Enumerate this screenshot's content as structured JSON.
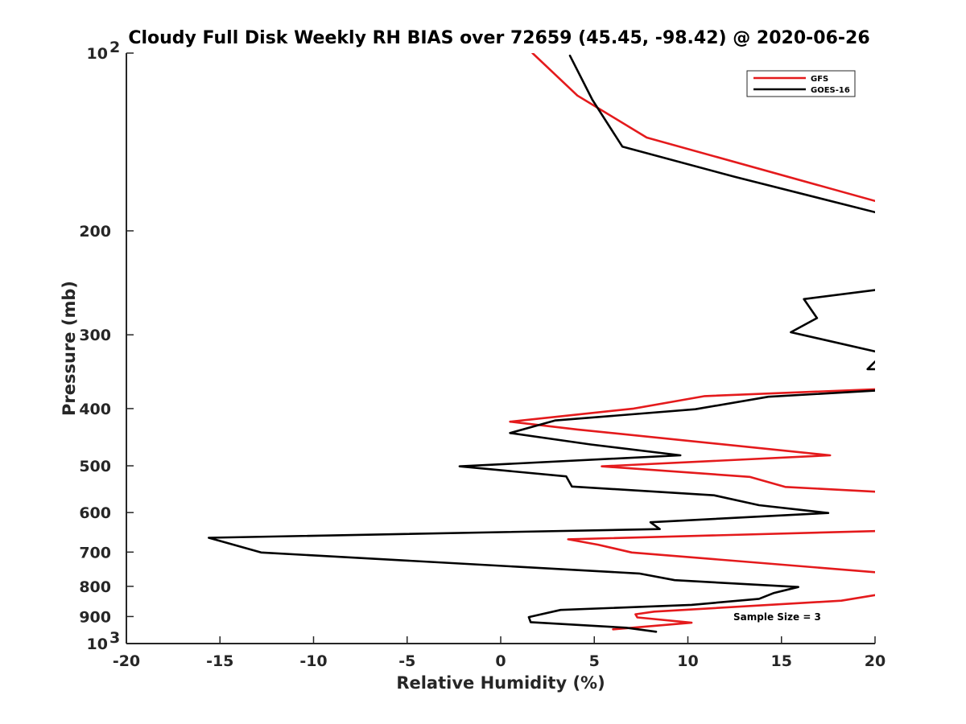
{
  "chart_data": {
    "type": "line",
    "title": "Cloudy Full Disk Weekly RH BIAS over 72659 (45.45, -98.42) @ 2020-06-26",
    "xlabel": "Relative Humidity (%)",
    "ylabel": "Pressure (mb)",
    "xlim": [
      -20,
      20
    ],
    "ylim": [
      100,
      1000
    ],
    "y_scale": "log",
    "y_reversed": true,
    "grid": false,
    "legend_placement": "top-right",
    "x_ticks": [
      -20,
      -15,
      -10,
      -5,
      0,
      5,
      10,
      15,
      20
    ],
    "y_ticks": [
      {
        "value": 100,
        "label": "10",
        "sup": "2"
      },
      {
        "value": 200,
        "label": "200",
        "sup": ""
      },
      {
        "value": 300,
        "label": "300",
        "sup": ""
      },
      {
        "value": 400,
        "label": "400",
        "sup": ""
      },
      {
        "value": 500,
        "label": "500",
        "sup": ""
      },
      {
        "value": 600,
        "label": "600",
        "sup": ""
      },
      {
        "value": 700,
        "label": "700",
        "sup": ""
      },
      {
        "value": 800,
        "label": "800",
        "sup": ""
      },
      {
        "value": 900,
        "label": "900",
        "sup": ""
      },
      {
        "value": 1000,
        "label": "10",
        "sup": "3"
      }
    ],
    "series": [
      {
        "name": "GFS",
        "color": "#e41a1c",
        "points": [
          [
            1.7,
            100
          ],
          [
            4.1,
            118
          ],
          [
            7.8,
            139
          ],
          [
            20,
            178
          ],
          null,
          [
            20,
            371
          ],
          [
            10.9,
            381
          ],
          [
            7.1,
            400
          ],
          [
            0.5,
            421
          ],
          [
            4.1,
            434
          ],
          [
            17.6,
            480
          ],
          [
            5.4,
            501
          ],
          [
            13.3,
            522
          ],
          [
            15.2,
            543
          ],
          [
            20,
            553
          ],
          null,
          [
            20,
            645
          ],
          [
            3.6,
            666
          ],
          [
            5.2,
            680
          ],
          [
            7.0,
            701
          ],
          [
            20,
            757
          ],
          null,
          [
            20,
            828
          ],
          [
            18.2,
            846
          ],
          [
            8.2,
            883
          ],
          [
            7.2,
            892
          ],
          [
            7.3,
            903
          ],
          [
            10.2,
            922
          ],
          [
            6.0,
            946
          ]
        ]
      },
      {
        "name": "GOES-16",
        "color": "#000000",
        "points": [
          [
            3.7,
            101
          ],
          [
            4.9,
            120
          ],
          [
            6.5,
            144
          ],
          [
            12.5,
            162
          ],
          [
            20,
            186
          ],
          null,
          [
            20,
            252
          ],
          [
            16.2,
            261
          ],
          [
            16.9,
            281
          ],
          [
            15.5,
            297
          ],
          [
            20,
            320
          ],
          null,
          [
            20,
            333
          ],
          [
            19.6,
            343
          ],
          [
            20,
            343
          ],
          null,
          [
            20,
            373
          ],
          [
            14.3,
            382
          ],
          [
            10.4,
            401
          ],
          [
            2.9,
            419
          ],
          [
            0.5,
            440
          ],
          [
            4.8,
            460
          ],
          [
            9.6,
            480
          ],
          [
            -2.2,
            501
          ],
          [
            3.5,
            521
          ],
          [
            3.8,
            542
          ],
          [
            11.4,
            561
          ],
          [
            13.8,
            583
          ],
          [
            17.5,
            601
          ],
          [
            8.0,
            623
          ],
          [
            8.5,
            640
          ],
          [
            -15.6,
            662
          ],
          [
            -12.8,
            701
          ],
          [
            7.4,
            761
          ],
          [
            9.3,
            781
          ],
          [
            15.9,
            802
          ],
          [
            14.6,
            821
          ],
          [
            13.8,
            840
          ],
          [
            10.2,
            860
          ],
          [
            3.2,
            877
          ],
          [
            1.5,
            902
          ],
          [
            1.6,
            920
          ],
          [
            6.7,
            940
          ],
          [
            8.3,
            955
          ]
        ]
      }
    ],
    "annotations": [
      "Sample Size = 3"
    ]
  }
}
